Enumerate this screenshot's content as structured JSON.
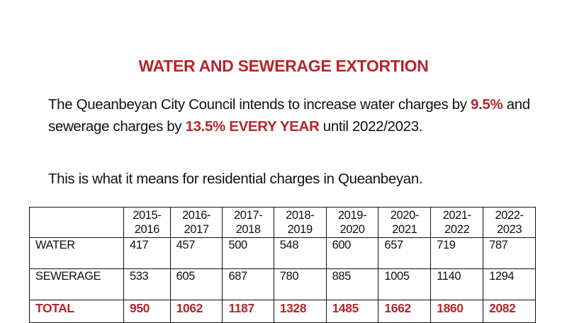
{
  "title": "WATER AND SEWERAGE EXTORTION",
  "paragraph": {
    "part1": "The Queanbeyan City Council intends to increase water charges by ",
    "water_rate": "9.5%",
    "part2": " and sewerage charges by ",
    "sewer_rate": "13.5% EVERY YEAR",
    "part3": " until 2022/2023."
  },
  "subtitle": "This is what it means for residential charges in Queanbeyan.",
  "table": {
    "headers": [
      [
        "2015-",
        "2016"
      ],
      [
        "2016-",
        "2017"
      ],
      [
        "2017-",
        "2018"
      ],
      [
        "2018-",
        "2019"
      ],
      [
        "2019-",
        "2020"
      ],
      [
        "2020-",
        "2021"
      ],
      [
        "2021-",
        "2022"
      ],
      [
        "2022-",
        "2023"
      ]
    ],
    "rows": [
      {
        "label": "WATER",
        "values": [
          "417",
          "457",
          "500",
          "548",
          "600",
          "657",
          "719",
          "787"
        ]
      },
      {
        "label": "SEWERAGE",
        "values": [
          "533",
          "605",
          "687",
          "780",
          "885",
          "1005",
          "1140",
          "1294"
        ]
      },
      {
        "label": "TOTAL",
        "values": [
          "950",
          "1062",
          "1187",
          "1328",
          "1485",
          "1662",
          "1860",
          "2082"
        ]
      }
    ]
  }
}
